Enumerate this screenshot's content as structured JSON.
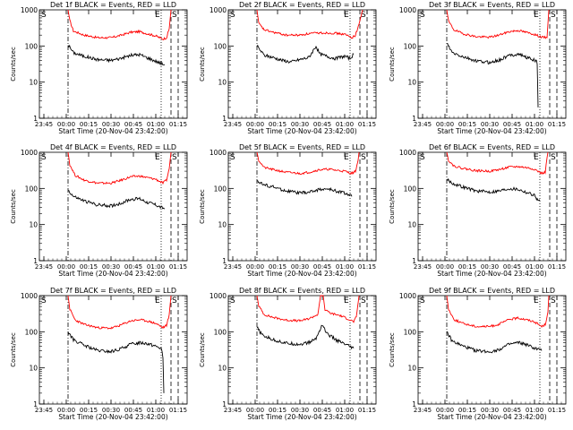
{
  "chart_data": {
    "type": "line",
    "shared": {
      "xlabel": "Start Time (20-Nov-04 23:42:00)",
      "ylabel": "Counts/sec",
      "x_tick_labels": [
        "23:45",
        "00:00",
        "00:15",
        "00:30",
        "00:45",
        "01:00",
        "01:15"
      ],
      "x_tick_hours": [
        -0.25,
        0,
        0.25,
        0.5,
        0.75,
        1.0,
        1.25
      ],
      "xlim_hours": [
        -0.3,
        1.35
      ],
      "y_tick_labels": [
        "1",
        "10",
        "100",
        "1000"
      ],
      "ylim": [
        1,
        1000
      ],
      "yscale": "log",
      "series_colors": {
        "events": "#000000",
        "lld": "#ff0000"
      },
      "markers": {
        "S": "S",
        "E": "E"
      },
      "line_hours": {
        "dashdot": 0.02,
        "dotted": 1.06,
        "dashed1": 1.17,
        "dashed2": 1.25
      }
    },
    "panels": [
      {
        "title": "Det 1f BLACK = Events, RED = LLD",
        "events": [
          [
            0.02,
            110
          ],
          [
            0.08,
            65
          ],
          [
            0.2,
            52
          ],
          [
            0.35,
            42
          ],
          [
            0.5,
            40
          ],
          [
            0.6,
            45
          ],
          [
            0.72,
            55
          ],
          [
            0.82,
            58
          ],
          [
            0.9,
            48
          ],
          [
            1.0,
            38
          ],
          [
            1.06,
            33
          ],
          [
            1.1,
            30
          ]
        ],
        "lld": [
          [
            0.02,
            1000
          ],
          [
            0.04,
            500
          ],
          [
            0.08,
            260
          ],
          [
            0.2,
            200
          ],
          [
            0.35,
            170
          ],
          [
            0.5,
            170
          ],
          [
            0.6,
            195
          ],
          [
            0.72,
            240
          ],
          [
            0.82,
            250
          ],
          [
            0.9,
            220
          ],
          [
            1.0,
            190
          ],
          [
            1.08,
            155
          ],
          [
            1.12,
            170
          ],
          [
            1.15,
            300
          ],
          [
            1.17,
            1000
          ]
        ]
      },
      {
        "title": "Det 2f BLACK = Events, RED = LLD",
        "events": [
          [
            0.02,
            100
          ],
          [
            0.1,
            55
          ],
          [
            0.2,
            48
          ],
          [
            0.3,
            40
          ],
          [
            0.4,
            36
          ],
          [
            0.5,
            42
          ],
          [
            0.6,
            48
          ],
          [
            0.68,
            100
          ],
          [
            0.72,
            60
          ],
          [
            0.82,
            50
          ],
          [
            0.9,
            45
          ],
          [
            1.0,
            52
          ],
          [
            1.06,
            45
          ],
          [
            1.1,
            60
          ]
        ],
        "lld": [
          [
            0.02,
            1000
          ],
          [
            0.04,
            420
          ],
          [
            0.1,
            280
          ],
          [
            0.2,
            240
          ],
          [
            0.35,
            200
          ],
          [
            0.5,
            200
          ],
          [
            0.6,
            220
          ],
          [
            0.72,
            230
          ],
          [
            0.82,
            230
          ],
          [
            0.9,
            225
          ],
          [
            1.0,
            210
          ],
          [
            1.08,
            170
          ],
          [
            1.12,
            200
          ],
          [
            1.16,
            400
          ],
          [
            1.2,
            1000
          ]
        ]
      },
      {
        "title": "Det 3f BLACK = Events, RED = LLD",
        "events": [
          [
            0.02,
            120
          ],
          [
            0.08,
            65
          ],
          [
            0.2,
            50
          ],
          [
            0.35,
            38
          ],
          [
            0.5,
            35
          ],
          [
            0.6,
            40
          ],
          [
            0.72,
            55
          ],
          [
            0.82,
            60
          ],
          [
            0.9,
            50
          ],
          [
            1.0,
            40
          ],
          [
            1.03,
            35
          ],
          [
            1.04,
            2
          ]
        ],
        "lld": [
          [
            0.02,
            1000
          ],
          [
            0.04,
            480
          ],
          [
            0.1,
            280
          ],
          [
            0.2,
            220
          ],
          [
            0.35,
            180
          ],
          [
            0.5,
            175
          ],
          [
            0.6,
            200
          ],
          [
            0.72,
            250
          ],
          [
            0.82,
            270
          ],
          [
            0.9,
            240
          ],
          [
            1.0,
            210
          ],
          [
            1.08,
            175
          ],
          [
            1.14,
            170
          ],
          [
            1.16,
            1000
          ]
        ]
      },
      {
        "title": "Det 4f BLACK = Events, RED = LLD",
        "events": [
          [
            0.02,
            90
          ],
          [
            0.08,
            60
          ],
          [
            0.2,
            45
          ],
          [
            0.35,
            35
          ],
          [
            0.5,
            33
          ],
          [
            0.6,
            38
          ],
          [
            0.72,
            50
          ],
          [
            0.82,
            52
          ],
          [
            0.9,
            42
          ],
          [
            1.0,
            35
          ],
          [
            1.06,
            30
          ],
          [
            1.1,
            28
          ]
        ],
        "lld": [
          [
            0.02,
            1000
          ],
          [
            0.04,
            450
          ],
          [
            0.1,
            230
          ],
          [
            0.2,
            170
          ],
          [
            0.35,
            140
          ],
          [
            0.5,
            140
          ],
          [
            0.6,
            165
          ],
          [
            0.72,
            210
          ],
          [
            0.82,
            220
          ],
          [
            0.9,
            200
          ],
          [
            1.0,
            180
          ],
          [
            1.08,
            140
          ],
          [
            1.12,
            170
          ],
          [
            1.15,
            350
          ],
          [
            1.17,
            1000
          ]
        ]
      },
      {
        "title": "Det 5f BLACK = Events, RED = LLD",
        "events": [
          [
            0.02,
            170
          ],
          [
            0.08,
            130
          ],
          [
            0.2,
            110
          ],
          [
            0.35,
            85
          ],
          [
            0.5,
            75
          ],
          [
            0.6,
            78
          ],
          [
            0.72,
            95
          ],
          [
            0.82,
            95
          ],
          [
            0.9,
            85
          ],
          [
            1.0,
            75
          ],
          [
            1.06,
            65
          ],
          [
            1.08,
            60
          ]
        ],
        "lld": [
          [
            0.02,
            1000
          ],
          [
            0.04,
            600
          ],
          [
            0.1,
            380
          ],
          [
            0.2,
            330
          ],
          [
            0.35,
            280
          ],
          [
            0.5,
            260
          ],
          [
            0.6,
            280
          ],
          [
            0.72,
            330
          ],
          [
            0.82,
            340
          ],
          [
            0.9,
            320
          ],
          [
            1.0,
            300
          ],
          [
            1.08,
            260
          ],
          [
            1.12,
            300
          ],
          [
            1.15,
            600
          ],
          [
            1.16,
            1000
          ]
        ]
      },
      {
        "title": "Det 6f BLACK = Events, RED = LLD",
        "events": [
          [
            0.02,
            180
          ],
          [
            0.08,
            140
          ],
          [
            0.2,
            110
          ],
          [
            0.35,
            85
          ],
          [
            0.5,
            80
          ],
          [
            0.6,
            85
          ],
          [
            0.72,
            100
          ],
          [
            0.82,
            95
          ],
          [
            0.9,
            80
          ],
          [
            1.0,
            65
          ],
          [
            1.03,
            50
          ],
          [
            1.06,
            45
          ]
        ],
        "lld": [
          [
            0.02,
            1000
          ],
          [
            0.04,
            600
          ],
          [
            0.1,
            420
          ],
          [
            0.2,
            360
          ],
          [
            0.35,
            310
          ],
          [
            0.5,
            300
          ],
          [
            0.6,
            330
          ],
          [
            0.72,
            390
          ],
          [
            0.82,
            400
          ],
          [
            0.9,
            380
          ],
          [
            1.0,
            340
          ],
          [
            1.08,
            260
          ],
          [
            1.12,
            280
          ],
          [
            1.14,
            700
          ],
          [
            1.15,
            1000
          ]
        ]
      },
      {
        "title": "Det 7f BLACK = Events, RED = LLD",
        "events": [
          [
            0.02,
            100
          ],
          [
            0.08,
            60
          ],
          [
            0.2,
            42
          ],
          [
            0.35,
            30
          ],
          [
            0.5,
            28
          ],
          [
            0.6,
            33
          ],
          [
            0.72,
            45
          ],
          [
            0.82,
            50
          ],
          [
            0.9,
            48
          ],
          [
            1.0,
            40
          ],
          [
            1.06,
            35
          ],
          [
            1.08,
            20
          ],
          [
            1.09,
            2
          ]
        ],
        "lld": [
          [
            0.02,
            1000
          ],
          [
            0.04,
            420
          ],
          [
            0.1,
            210
          ],
          [
            0.2,
            160
          ],
          [
            0.35,
            130
          ],
          [
            0.5,
            125
          ],
          [
            0.6,
            150
          ],
          [
            0.72,
            200
          ],
          [
            0.82,
            215
          ],
          [
            0.9,
            200
          ],
          [
            1.0,
            170
          ],
          [
            1.08,
            130
          ],
          [
            1.12,
            150
          ],
          [
            1.15,
            300
          ],
          [
            1.17,
            1000
          ]
        ]
      },
      {
        "title": "Det 8f BLACK = Events, RED = LLD",
        "events": [
          [
            0.02,
            130
          ],
          [
            0.08,
            80
          ],
          [
            0.2,
            60
          ],
          [
            0.35,
            48
          ],
          [
            0.5,
            45
          ],
          [
            0.6,
            50
          ],
          [
            0.68,
            65
          ],
          [
            0.75,
            160
          ],
          [
            0.8,
            90
          ],
          [
            0.9,
            60
          ],
          [
            1.0,
            45
          ],
          [
            1.06,
            38
          ],
          [
            1.1,
            35
          ]
        ],
        "lld": [
          [
            0.02,
            1000
          ],
          [
            0.04,
            520
          ],
          [
            0.1,
            300
          ],
          [
            0.2,
            250
          ],
          [
            0.35,
            210
          ],
          [
            0.5,
            200
          ],
          [
            0.6,
            230
          ],
          [
            0.7,
            300
          ],
          [
            0.73,
            1000
          ],
          [
            0.76,
            1000
          ],
          [
            0.78,
            400
          ],
          [
            0.85,
            320
          ],
          [
            0.95,
            280
          ],
          [
            1.05,
            220
          ],
          [
            1.1,
            190
          ],
          [
            1.13,
            260
          ],
          [
            1.16,
            1000
          ]
        ]
      },
      {
        "title": "Det 9f BLACK = Events, RED = LLD",
        "events": [
          [
            0.02,
            100
          ],
          [
            0.08,
            55
          ],
          [
            0.2,
            40
          ],
          [
            0.35,
            30
          ],
          [
            0.5,
            28
          ],
          [
            0.6,
            32
          ],
          [
            0.72,
            45
          ],
          [
            0.82,
            50
          ],
          [
            0.9,
            45
          ],
          [
            1.0,
            35
          ],
          [
            1.06,
            32
          ],
          [
            1.08,
            30
          ]
        ],
        "lld": [
          [
            0.02,
            1000
          ],
          [
            0.04,
            420
          ],
          [
            0.1,
            220
          ],
          [
            0.2,
            170
          ],
          [
            0.35,
            140
          ],
          [
            0.5,
            140
          ],
          [
            0.6,
            160
          ],
          [
            0.72,
            220
          ],
          [
            0.82,
            240
          ],
          [
            0.9,
            220
          ],
          [
            1.0,
            190
          ],
          [
            1.08,
            140
          ],
          [
            1.12,
            160
          ],
          [
            1.15,
            350
          ],
          [
            1.16,
            1000
          ]
        ]
      }
    ]
  }
}
